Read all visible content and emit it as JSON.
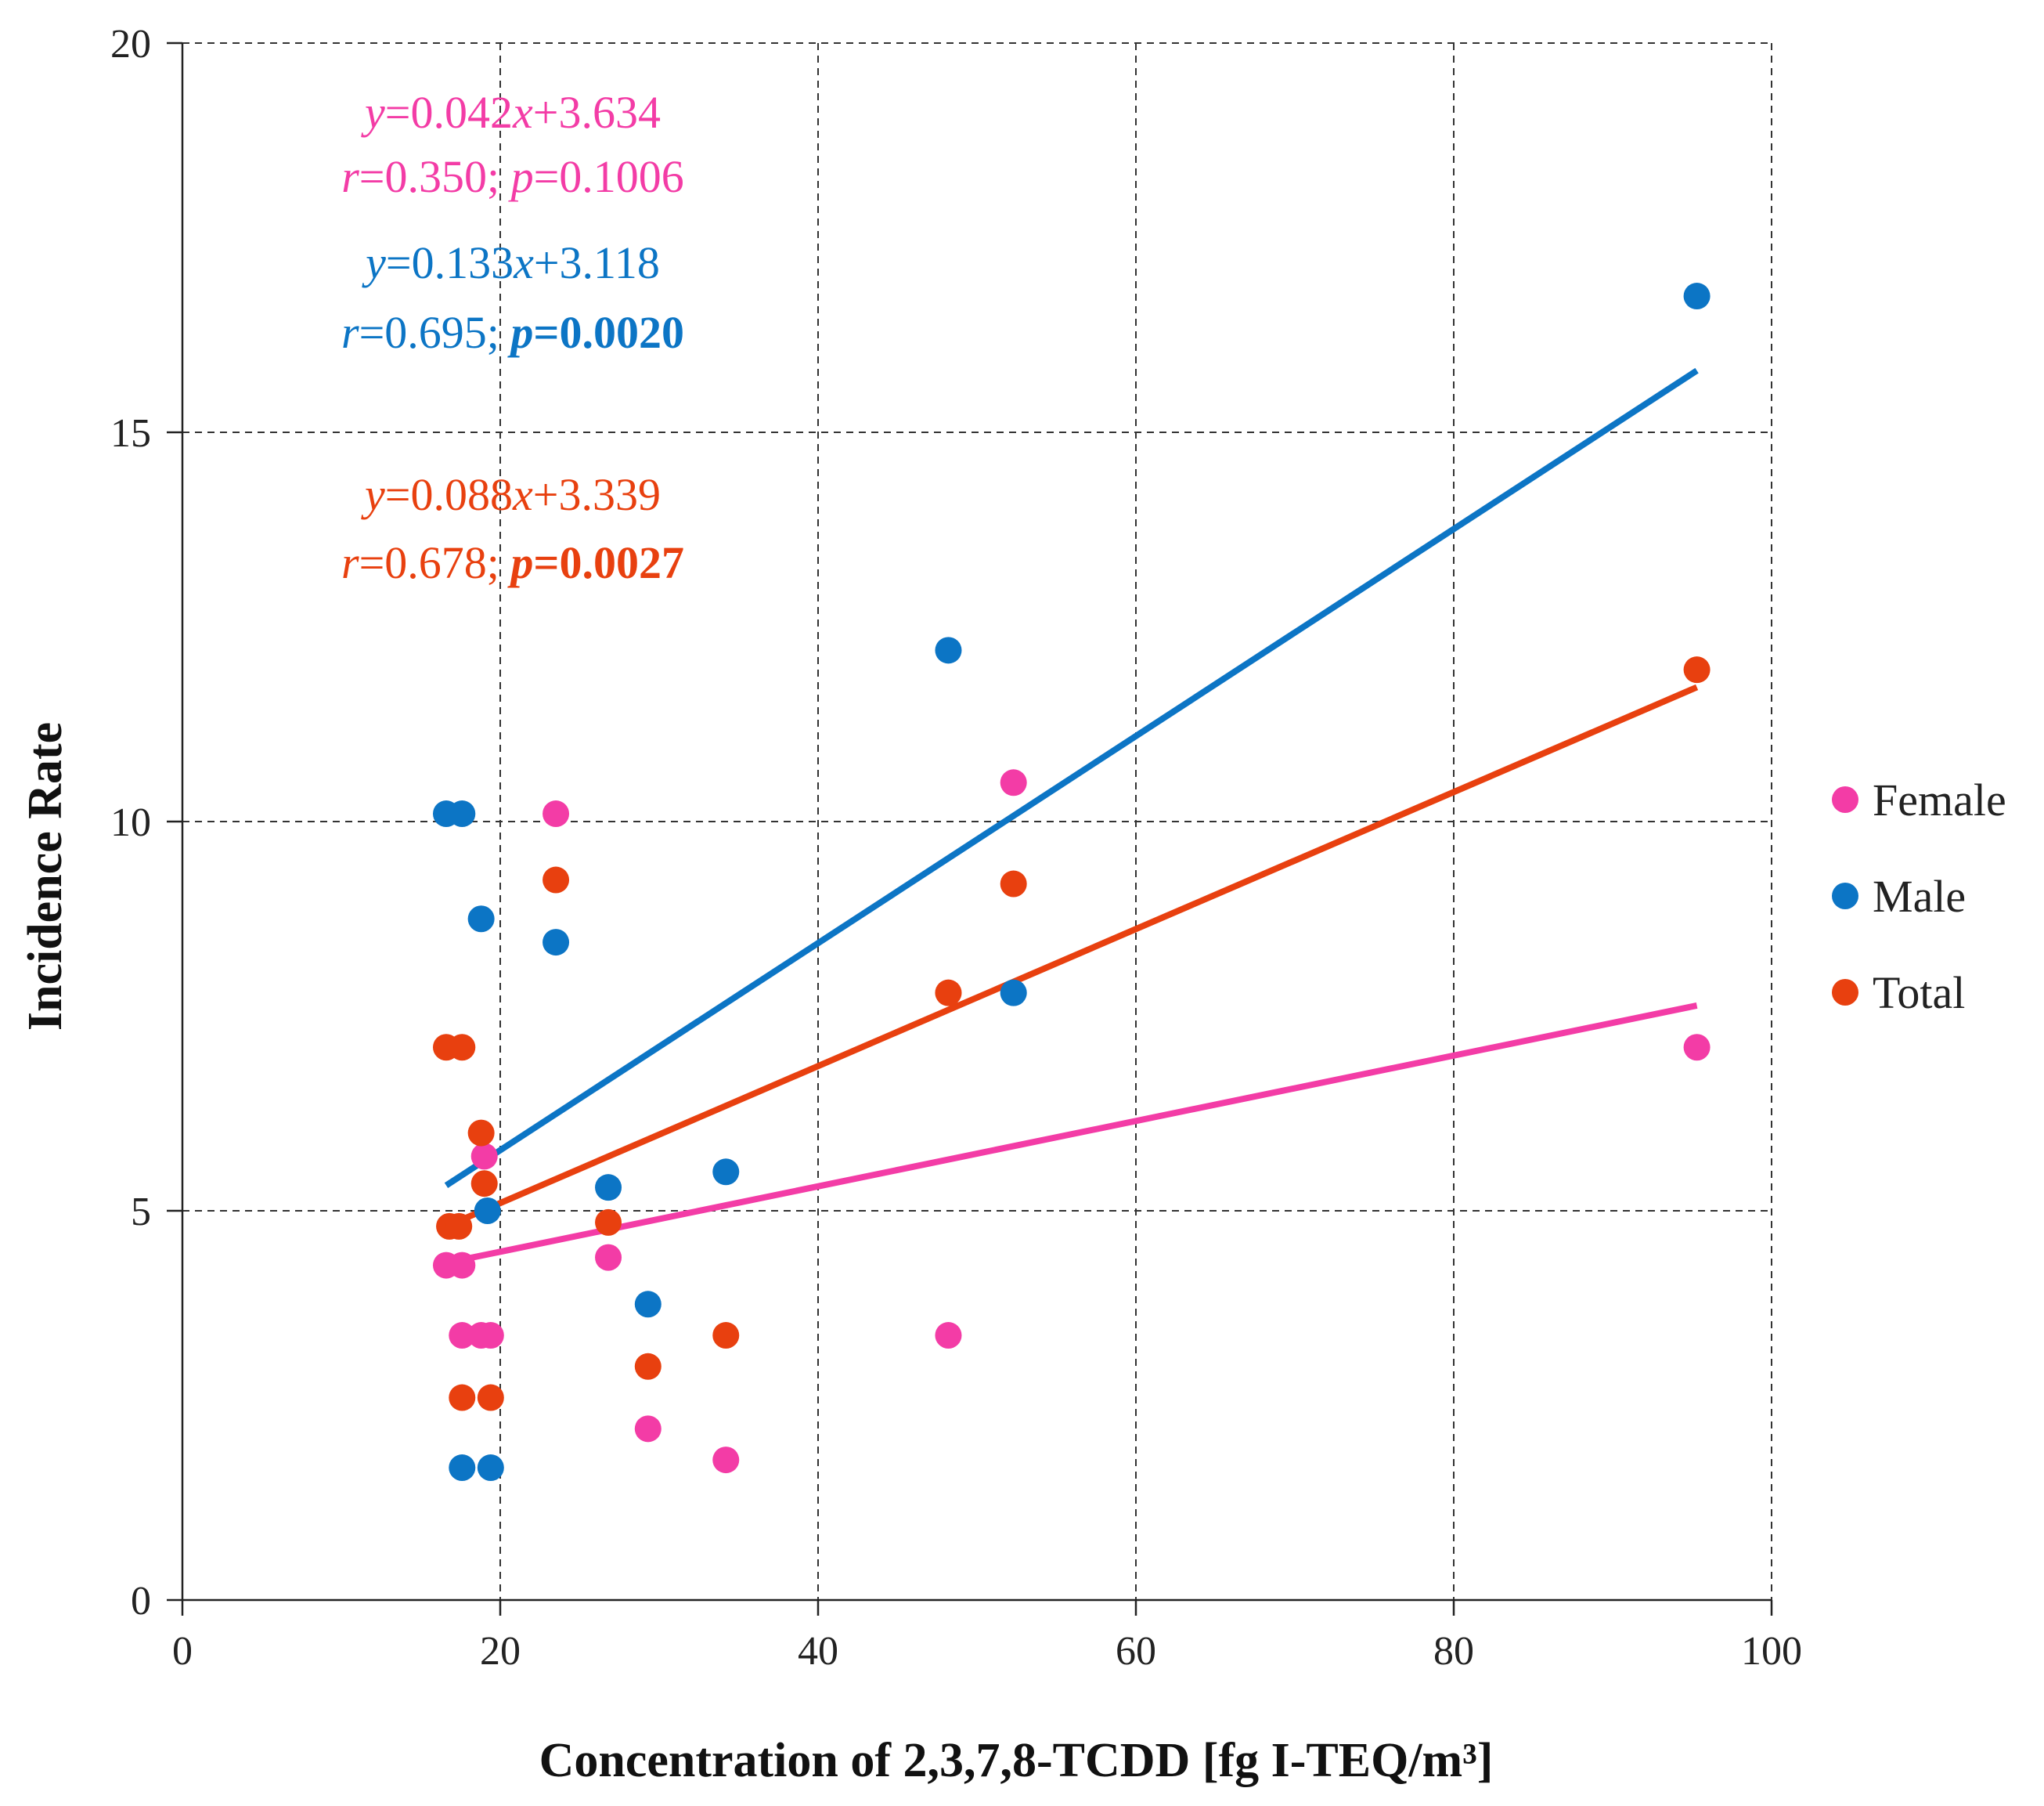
{
  "chart_data": {
    "type": "scatter",
    "title": "",
    "xlabel": "Concentration of 2,3,7,8-TCDD [fg I-TEQ/m³]",
    "ylabel": "Incidence Rate",
    "xlim": [
      0,
      100
    ],
    "ylim": [
      0,
      20
    ],
    "xticks": [
      0,
      20,
      40,
      60,
      80,
      100
    ],
    "yticks": [
      0,
      5,
      10,
      15,
      20
    ],
    "grid": true,
    "legend_position": "right",
    "series": [
      {
        "name": "Female",
        "color": "#f33ca6",
        "x": [
          16.6,
          17.6,
          17.6,
          18.8,
          19.4,
          19.0,
          23.5,
          26.8,
          29.3,
          34.2,
          48.2,
          52.3,
          95.3
        ],
        "y": [
          4.3,
          4.3,
          3.4,
          3.4,
          3.4,
          5.7,
          10.1,
          4.4,
          2.2,
          1.8,
          3.4,
          10.5,
          7.1
        ],
        "fit": {
          "slope": 0.042,
          "intercept": 3.634,
          "x_range": [
            16.6,
            95.3
          ]
        }
      },
      {
        "name": "Male",
        "color": "#0c75c5",
        "x": [
          16.6,
          17.6,
          17.6,
          18.8,
          19.2,
          19.4,
          23.5,
          26.8,
          29.3,
          34.2,
          48.2,
          52.3,
          95.3
        ],
        "y": [
          10.1,
          10.1,
          1.7,
          8.75,
          5.0,
          1.7,
          8.45,
          5.3,
          3.8,
          5.5,
          12.2,
          7.8,
          16.75
        ],
        "fit": {
          "slope": 0.133,
          "intercept": 3.118,
          "x_range": [
            16.6,
            95.3
          ]
        }
      },
      {
        "name": "Total",
        "color": "#e8400f",
        "x": [
          16.6,
          17.6,
          17.6,
          18.8,
          19.0,
          19.4,
          23.5,
          26.8,
          29.3,
          34.2,
          48.2,
          52.3,
          95.3,
          16.8,
          17.4
        ],
        "y": [
          7.1,
          7.1,
          2.6,
          6.0,
          5.35,
          2.6,
          9.25,
          4.85,
          3.0,
          3.4,
          7.8,
          9.2,
          11.95,
          4.8,
          4.8
        ],
        "fit": {
          "slope": 0.088,
          "intercept": 3.339,
          "x_range": [
            16.6,
            95.3
          ]
        }
      }
    ],
    "annotations": [
      {
        "series": "Female",
        "equation": {
          "y": "y",
          "eq": "=0.042",
          "x": "x",
          "rest": "+3.634"
        },
        "stats": {
          "r": "r",
          "r_val": "=0.350; ",
          "p": "p",
          "p_val": "=0.1006"
        },
        "p_bold": false
      },
      {
        "series": "Male",
        "equation": {
          "y": "y",
          "eq": "=0.133",
          "x": "x",
          "rest": "+3.118"
        },
        "stats": {
          "r": "r",
          "r_val": "=0.695; ",
          "p": "p",
          "p_val": "=0.0020"
        },
        "p_bold": true
      },
      {
        "series": "Total",
        "equation": {
          "y": "y",
          "eq": "=0.088",
          "x": "x",
          "rest": "+3.339"
        },
        "stats": {
          "r": "r",
          "r_val": "=0.678; ",
          "p": "p",
          "p_val": "=0.0027"
        },
        "p_bold": true
      }
    ]
  }
}
